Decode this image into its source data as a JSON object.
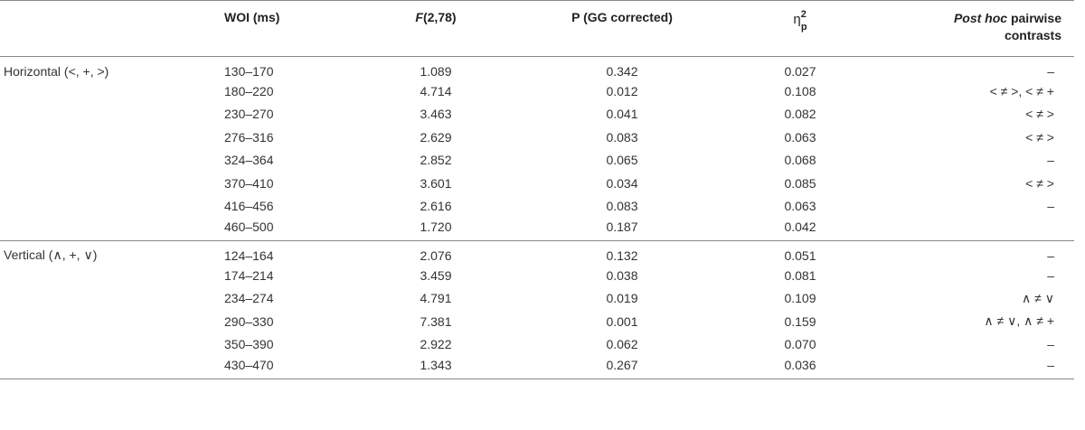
{
  "headers": {
    "group": "",
    "woi": "WOI (ms)",
    "f_italic": "F",
    "f_rest": "(2,78)",
    "p": "P (GG corrected)",
    "eta_symbol": "η",
    "eta_sup": "2",
    "eta_sub": "p",
    "post_italic": "Post hoc",
    "post_rest": " pairwise",
    "post_line2": "contrasts"
  },
  "groups": [
    {
      "label": "Horizontal (<, +, >)",
      "rows": [
        {
          "woi": "130–170",
          "f": "1.089",
          "p": "0.342",
          "eta": "0.027",
          "post": "–"
        },
        {
          "woi": "180–220",
          "f": "4.714",
          "p": "0.012",
          "eta": "0.108",
          "post": "< ≠ >, < ≠ +"
        },
        {
          "woi": "230–270",
          "f": "3.463",
          "p": "0.041",
          "eta": "0.082",
          "post": "< ≠ >"
        },
        {
          "woi": "276–316",
          "f": "2.629",
          "p": "0.083",
          "eta": "0.063",
          "post": "< ≠ >"
        },
        {
          "woi": "324–364",
          "f": "2.852",
          "p": "0.065",
          "eta": "0.068",
          "post": "–"
        },
        {
          "woi": "370–410",
          "f": "3.601",
          "p": "0.034",
          "eta": "0.085",
          "post": "< ≠ >"
        },
        {
          "woi": "416–456",
          "f": "2.616",
          "p": "0.083",
          "eta": "0.063",
          "post": "–"
        },
        {
          "woi": "460–500",
          "f": "1.720",
          "p": "0.187",
          "eta": "0.042",
          "post": ""
        }
      ]
    },
    {
      "label": "Vertical (∧, +, ∨)",
      "rows": [
        {
          "woi": "124–164",
          "f": "2.076",
          "p": "0.132",
          "eta": "0.051",
          "post": "–"
        },
        {
          "woi": "174–214",
          "f": "3.459",
          "p": "0.038",
          "eta": "0.081",
          "post": "–"
        },
        {
          "woi": "234–274",
          "f": "4.791",
          "p": "0.019",
          "eta": "0.109",
          "post": "∧ ≠ ∨"
        },
        {
          "woi": "290–330",
          "f": "7.381",
          "p": "0.001",
          "eta": "0.159",
          "post": "∧ ≠ ∨, ∧ ≠ +"
        },
        {
          "woi": "350–390",
          "f": "2.922",
          "p": "0.062",
          "eta": "0.070",
          "post": "–"
        },
        {
          "woi": "430–470",
          "f": "1.343",
          "p": "0.267",
          "eta": "0.036",
          "post": "–"
        }
      ]
    }
  ]
}
